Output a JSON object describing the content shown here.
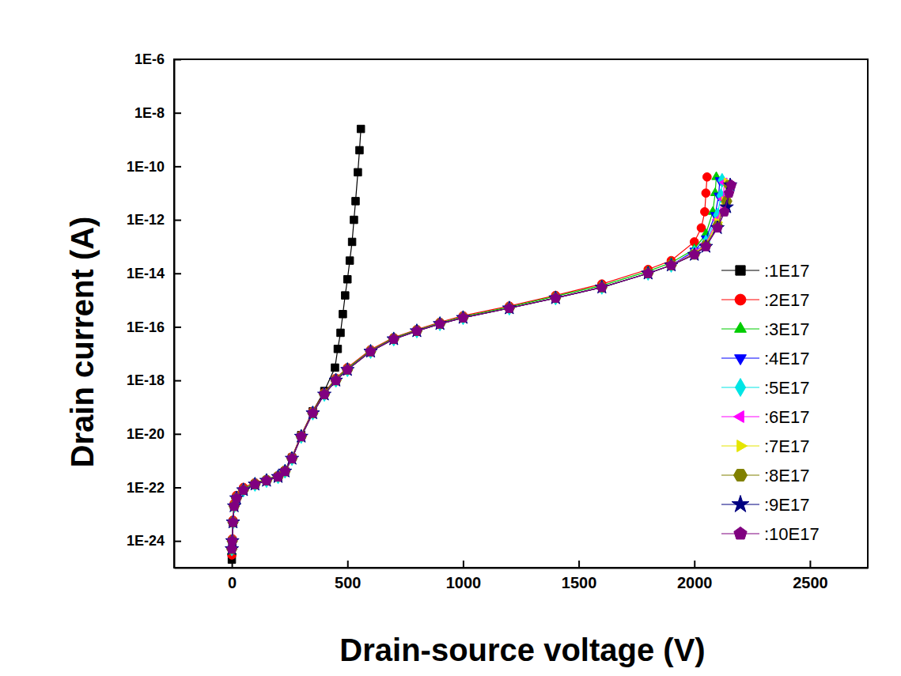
{
  "chart_data": {
    "type": "line",
    "x_label": "Drain-source voltage (V)",
    "y_label": "Drain current (A)",
    "log": "y",
    "grid": false,
    "legend": "right",
    "xlim": [
      -250,
      2750
    ],
    "xticks": [
      0,
      500,
      1000,
      1500,
      2000,
      2500
    ],
    "ylim": [
      1e-25,
      1e-06
    ],
    "yticks": [
      {
        "value": 1e-24,
        "label": "1E-24"
      },
      {
        "value": 1e-22,
        "label": "1E-22"
      },
      {
        "value": 1e-20,
        "label": "1E-20"
      },
      {
        "value": 1e-18,
        "label": "1E-18"
      },
      {
        "value": 1e-16,
        "label": "1E-16"
      },
      {
        "value": 1e-14,
        "label": "1E-14"
      },
      {
        "value": 1e-12,
        "label": "1E-12"
      },
      {
        "value": 1e-10,
        "label": "1E-10"
      },
      {
        "value": 1e-08,
        "label": "1E-8"
      },
      {
        "value": 1e-06,
        "label": "1E-6"
      }
    ],
    "series": [
      {
        "name": ":1E17",
        "color": "#000000",
        "marker": "square",
        "line_style": "solid",
        "x": [
          0,
          2,
          5,
          10,
          20,
          50,
          100,
          150,
          200,
          230,
          260,
          300,
          350,
          400,
          446,
          458,
          470,
          480,
          490,
          500,
          510,
          520,
          528,
          535,
          545,
          552,
          558
        ],
        "values": [
          2e-25,
          1e-24,
          5e-24,
          2e-23,
          4e-23,
          8e-23,
          1.3e-22,
          1.8e-22,
          2.5e-22,
          4e-22,
          1.3e-21,
          9e-21,
          7e-20,
          4e-19,
          3e-18,
          1.5e-17,
          6e-17,
          3e-16,
          1.5e-15,
          6e-15,
          3e-14,
          1.5e-13,
          1e-12,
          5e-12,
          6e-11,
          4e-10,
          2.5e-09
        ]
      },
      {
        "name": ":2E17",
        "color": "#ff0000",
        "marker": "circle",
        "line_style": "solid",
        "x": [
          0,
          2,
          5,
          10,
          20,
          50,
          100,
          150,
          200,
          230,
          260,
          300,
          350,
          400,
          450,
          500,
          600,
          700,
          800,
          900,
          1000,
          1200,
          1400,
          1600,
          1800,
          1900,
          2000,
          2030,
          2045,
          2050,
          2055
        ],
        "values": [
          3e-25,
          1.2e-24,
          6e-24,
          2.5e-23,
          5e-23,
          1e-22,
          1.5e-22,
          2e-22,
          2.8e-22,
          4.5e-22,
          1.4e-21,
          9e-21,
          7e-20,
          3.5e-19,
          1.2e-18,
          3e-18,
          1.4e-17,
          4e-17,
          8e-17,
          1.5e-16,
          2.6e-16,
          6e-16,
          1.5e-15,
          4e-15,
          1.4e-14,
          3e-14,
          1.5e-13,
          5e-13,
          2e-12,
          1e-11,
          4e-11
        ]
      },
      {
        "name": ":3E17",
        "color": "#00cc00",
        "marker": "triangle-up",
        "line_style": "solid",
        "x": [
          0,
          2,
          5,
          10,
          20,
          50,
          100,
          150,
          200,
          230,
          260,
          300,
          350,
          400,
          450,
          500,
          600,
          700,
          800,
          900,
          1000,
          1200,
          1400,
          1600,
          1800,
          1900,
          2000,
          2050,
          2080,
          2090,
          2095
        ],
        "values": [
          4e-25,
          1.1e-24,
          5.5e-24,
          2.2e-23,
          4.5e-23,
          9e-23,
          1.4e-22,
          2e-22,
          2.7e-22,
          4.3e-22,
          1.3e-21,
          8.5e-21,
          6.5e-20,
          3.3e-19,
          1.1e-18,
          2.8e-18,
          1.3e-17,
          3.8e-17,
          7.5e-17,
          1.4e-16,
          2.4e-16,
          5.5e-16,
          1.4e-15,
          3.5e-15,
          1.2e-14,
          2.5e-14,
          8e-14,
          3e-13,
          2e-12,
          1e-11,
          4e-11
        ]
      },
      {
        "name": ":4E17",
        "color": "#0000ff",
        "marker": "triangle-down",
        "line_style": "solid",
        "x": [
          0,
          2,
          5,
          10,
          20,
          50,
          100,
          150,
          200,
          230,
          260,
          300,
          350,
          400,
          450,
          500,
          600,
          700,
          800,
          900,
          1000,
          1200,
          1400,
          1600,
          1800,
          1900,
          2000,
          2050,
          2090,
          2105,
          2110
        ],
        "values": [
          5e-25,
          1e-24,
          5e-24,
          2e-23,
          4e-23,
          8e-23,
          1.3e-22,
          1.8e-22,
          2.5e-22,
          4e-22,
          1.2e-21,
          8e-21,
          6e-20,
          3e-19,
          1e-18,
          2.5e-18,
          1.2e-17,
          3.5e-17,
          7e-17,
          1.3e-16,
          2.2e-16,
          5e-16,
          1.2e-15,
          3e-15,
          1e-14,
          2e-14,
          7e-14,
          2e-13,
          1.5e-12,
          8e-12,
          3e-11
        ]
      },
      {
        "name": ":5E17",
        "color": "#00e5e5",
        "marker": "diamond",
        "line_style": "solid",
        "x": [
          0,
          2,
          5,
          10,
          20,
          50,
          100,
          150,
          200,
          230,
          260,
          300,
          350,
          400,
          450,
          500,
          600,
          700,
          800,
          900,
          1000,
          1200,
          1400,
          1600,
          1800,
          1900,
          2000,
          2050,
          2100,
          2115,
          2120
        ],
        "values": [
          5e-25,
          1e-24,
          5e-24,
          2e-23,
          4e-23,
          8e-23,
          1.3e-22,
          1.8e-22,
          2.5e-22,
          4e-22,
          1.2e-21,
          8e-21,
          6e-20,
          3e-19,
          1e-18,
          2.5e-18,
          1.2e-17,
          3.5e-17,
          7e-17,
          1.3e-16,
          2.2e-16,
          5e-16,
          1.2e-15,
          3e-15,
          1e-14,
          2e-14,
          6e-14,
          1.5e-13,
          1.5e-12,
          8e-12,
          3e-11
        ]
      },
      {
        "name": ":6E17",
        "color": "#ff00ff",
        "marker": "triangle-left",
        "line_style": "solid",
        "x": [
          0,
          2,
          5,
          10,
          20,
          50,
          100,
          150,
          200,
          230,
          260,
          300,
          350,
          400,
          450,
          500,
          600,
          700,
          800,
          900,
          1000,
          1200,
          1400,
          1600,
          1800,
          1900,
          2000,
          2050,
          2100,
          2125,
          2130
        ],
        "values": [
          5e-25,
          1e-24,
          5e-24,
          2e-23,
          4e-23,
          8e-23,
          1.3e-22,
          1.8e-22,
          2.5e-22,
          4e-22,
          1.2e-21,
          8e-21,
          6e-20,
          3e-19,
          1e-18,
          2.5e-18,
          1.2e-17,
          3.5e-17,
          7e-17,
          1.3e-16,
          2.2e-16,
          5e-16,
          1.2e-15,
          3e-15,
          1e-14,
          2e-14,
          6e-14,
          1.3e-13,
          1e-12,
          6e-12,
          2.5e-11
        ]
      },
      {
        "name": ":7E17",
        "color": "#e5e500",
        "marker": "triangle-right",
        "line_style": "solid",
        "x": [
          0,
          2,
          5,
          10,
          20,
          50,
          100,
          150,
          200,
          230,
          260,
          300,
          350,
          400,
          450,
          500,
          600,
          700,
          800,
          900,
          1000,
          1200,
          1400,
          1600,
          1800,
          1900,
          2000,
          2050,
          2100,
          2130,
          2140
        ],
        "values": [
          5e-25,
          1e-24,
          5e-24,
          2e-23,
          4e-23,
          8e-23,
          1.3e-22,
          1.8e-22,
          2.5e-22,
          4e-22,
          1.2e-21,
          8e-21,
          6e-20,
          3e-19,
          1e-18,
          2.5e-18,
          1.2e-17,
          3.5e-17,
          7e-17,
          1.3e-16,
          2.2e-16,
          5e-16,
          1.2e-15,
          3e-15,
          1e-14,
          2e-14,
          5.5e-14,
          1.2e-13,
          8e-13,
          5e-12,
          2.5e-11
        ]
      },
      {
        "name": ":8E17",
        "color": "#808000",
        "marker": "hexagon",
        "line_style": "solid",
        "x": [
          0,
          2,
          5,
          10,
          20,
          50,
          100,
          150,
          200,
          230,
          260,
          300,
          350,
          400,
          450,
          500,
          600,
          700,
          800,
          900,
          1000,
          1200,
          1400,
          1600,
          1800,
          1900,
          2000,
          2050,
          2100,
          2140,
          2150
        ],
        "values": [
          5e-25,
          1e-24,
          5e-24,
          2e-23,
          4e-23,
          8e-23,
          1.3e-22,
          1.8e-22,
          2.5e-22,
          4e-22,
          1.2e-21,
          8e-21,
          6e-20,
          3e-19,
          1e-18,
          2.5e-18,
          1.2e-17,
          3.5e-17,
          7e-17,
          1.3e-16,
          2.2e-16,
          5e-16,
          1.2e-15,
          3e-15,
          1e-14,
          2e-14,
          5e-14,
          1.1e-13,
          6e-13,
          5e-12,
          2e-11
        ]
      },
      {
        "name": ":9E17",
        "color": "#000080",
        "marker": "star",
        "line_style": "solid",
        "x": [
          0,
          2,
          5,
          10,
          20,
          50,
          100,
          150,
          200,
          230,
          260,
          300,
          350,
          400,
          450,
          500,
          600,
          700,
          800,
          900,
          1000,
          1200,
          1400,
          1600,
          1800,
          1900,
          2000,
          2050,
          2100,
          2140,
          2155
        ],
        "values": [
          5e-25,
          1e-24,
          5e-24,
          2e-23,
          4e-23,
          8e-23,
          1.3e-22,
          1.8e-22,
          2.5e-22,
          4e-22,
          1.2e-21,
          8e-21,
          6e-20,
          3e-19,
          1e-18,
          2.5e-18,
          1.2e-17,
          3.5e-17,
          7e-17,
          1.3e-16,
          2.2e-16,
          5e-16,
          1.2e-15,
          3e-15,
          1e-14,
          2e-14,
          5e-14,
          1e-13,
          5e-13,
          3e-12,
          2e-11
        ]
      },
      {
        "name": ":10E17",
        "color": "#800080",
        "marker": "pentagon",
        "line_style": "solid",
        "x": [
          0,
          2,
          5,
          10,
          20,
          50,
          100,
          150,
          200,
          230,
          260,
          300,
          350,
          400,
          450,
          500,
          600,
          700,
          800,
          900,
          1000,
          1200,
          1400,
          1600,
          1800,
          1900,
          2000,
          2050,
          2100,
          2130,
          2150,
          2160
        ],
        "values": [
          5e-25,
          1e-24,
          5e-24,
          2e-23,
          4e-23,
          8e-23,
          1.3e-22,
          1.8e-22,
          2.5e-22,
          4e-22,
          1.2e-21,
          8e-21,
          6e-20,
          3e-19,
          1e-18,
          2.5e-18,
          1.2e-17,
          3.5e-17,
          7e-17,
          1.3e-16,
          2.2e-16,
          5e-16,
          1.2e-15,
          3e-15,
          1e-14,
          2e-14,
          5e-14,
          1e-13,
          5e-13,
          2e-12,
          1e-11,
          2e-11
        ]
      }
    ]
  }
}
